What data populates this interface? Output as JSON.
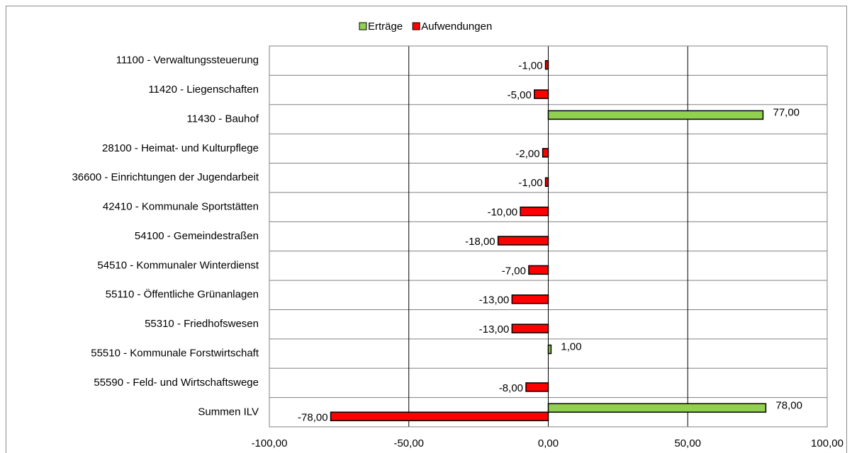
{
  "chart_data": {
    "type": "hbar",
    "categories": [
      "11100 - Verwaltungssteuerung",
      "11420 - Liegenschaften",
      "11430 - Bauhof",
      "28100 - Heimat- und Kulturpflege",
      "36600 - Einrichtungen der Jugendarbeit",
      "42410 - Kommunale Sportstätten",
      "54100 - Gemeindestraßen",
      "54510 - Kommunaler Winterdienst",
      "55110 - Öffentliche Grünanlagen",
      "55310 - Friedhofswesen",
      "55510 - Kommunale Forstwirtschaft",
      "55590 - Feld- und Wirtschaftswege",
      "Summen ILV"
    ],
    "series": [
      {
        "name": "Erträge",
        "color": "#92d050",
        "values": [
          null,
          null,
          77,
          null,
          null,
          null,
          null,
          null,
          null,
          null,
          1,
          null,
          78
        ],
        "value_labels": [
          null,
          null,
          "77,00",
          null,
          null,
          null,
          null,
          null,
          null,
          null,
          "1,00",
          null,
          "78,00"
        ]
      },
      {
        "name": "Aufwendungen",
        "color": "#ff0000",
        "values": [
          -1,
          -5,
          null,
          -2,
          -1,
          -10,
          -18,
          -7,
          -13,
          -13,
          null,
          -8,
          -78
        ],
        "value_labels": [
          "-1,00",
          "-5,00",
          null,
          "-2,00",
          "-1,00",
          "-10,00",
          "-18,00",
          "-7,00",
          "-13,00",
          "-13,00",
          null,
          "-8,00",
          "-78,00"
        ]
      }
    ],
    "xlim": [
      -100,
      100
    ],
    "xticks": [
      {
        "value": -100,
        "label": "-100,00"
      },
      {
        "value": -50,
        "label": "-50,00"
      },
      {
        "value": 0,
        "label": "0,00"
      },
      {
        "value": 50,
        "label": "50,00"
      },
      {
        "value": 100,
        "label": "100,00"
      }
    ],
    "grid": true,
    "legend": "top"
  }
}
